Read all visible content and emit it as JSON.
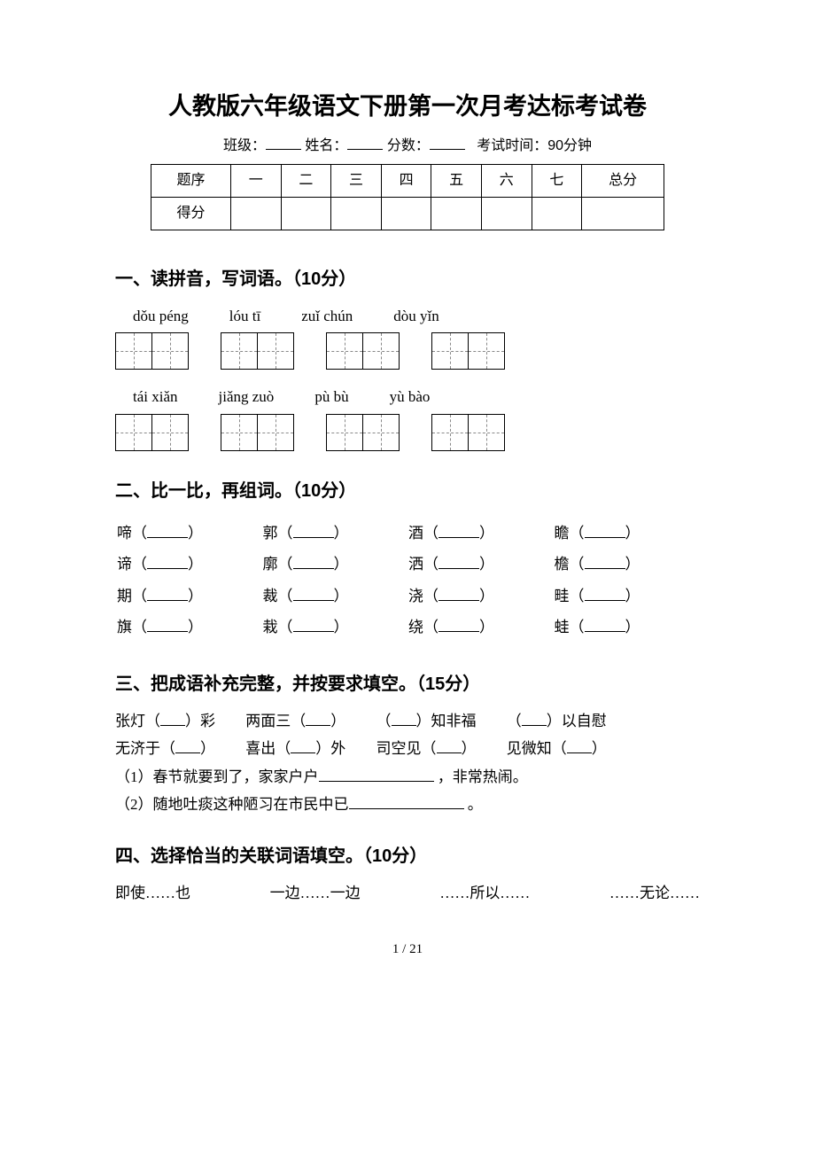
{
  "title": "人教版六年级语文下册第一次月考达标考试卷",
  "info": {
    "class_label": "班级：",
    "name_label": "姓名：",
    "score_label": "分数：",
    "time_label": "考试时间：90分钟"
  },
  "score_table": {
    "row1": [
      "题序",
      "一",
      "二",
      "三",
      "四",
      "五",
      "六",
      "七",
      "总分"
    ],
    "row2_label": "得分"
  },
  "section1": {
    "heading": "一、读拼音，写词语。（10分）",
    "pinyin_row1": [
      "dǒu péng",
      "lóu tī",
      "zuǐ chún",
      "dòu yǐn"
    ],
    "pinyin_row2": [
      "tái xiǎn",
      "jiǎng zuò",
      "pù bù",
      "yù bào"
    ]
  },
  "section2": {
    "heading": "二、比一比，再组词。（10分）",
    "rows": [
      [
        "啼",
        "郭",
        "酒",
        "瞻"
      ],
      [
        "谛",
        "廓",
        "洒",
        "檐"
      ],
      [
        "期",
        "裁",
        "浇",
        "畦"
      ],
      [
        "旗",
        "栽",
        "绕",
        "蛙"
      ]
    ]
  },
  "section3": {
    "heading": "三、把成语补充完整，并按要求填空。（15分）",
    "line1": [
      "张灯（",
      "）彩",
      "两面三（",
      "）",
      "（",
      "）知非福",
      "（",
      "）以自慰"
    ],
    "line2": [
      "无济于（",
      "）",
      "喜出（",
      "）外",
      "司空见（",
      "）",
      "见微知（",
      "）"
    ],
    "q1_prefix": "（1）春节就要到了，家家户户",
    "q1_suffix": "，非常热闹。",
    "q2_prefix": "（2）随地吐痰这种陋习在市民中已",
    "q2_suffix": "。"
  },
  "section4": {
    "heading": "四、选择恰当的关联词语填空。（10分）",
    "options": [
      "即使……也",
      "一边……一边",
      "……所以……",
      "……无论……"
    ]
  },
  "page_number": "1 / 21"
}
